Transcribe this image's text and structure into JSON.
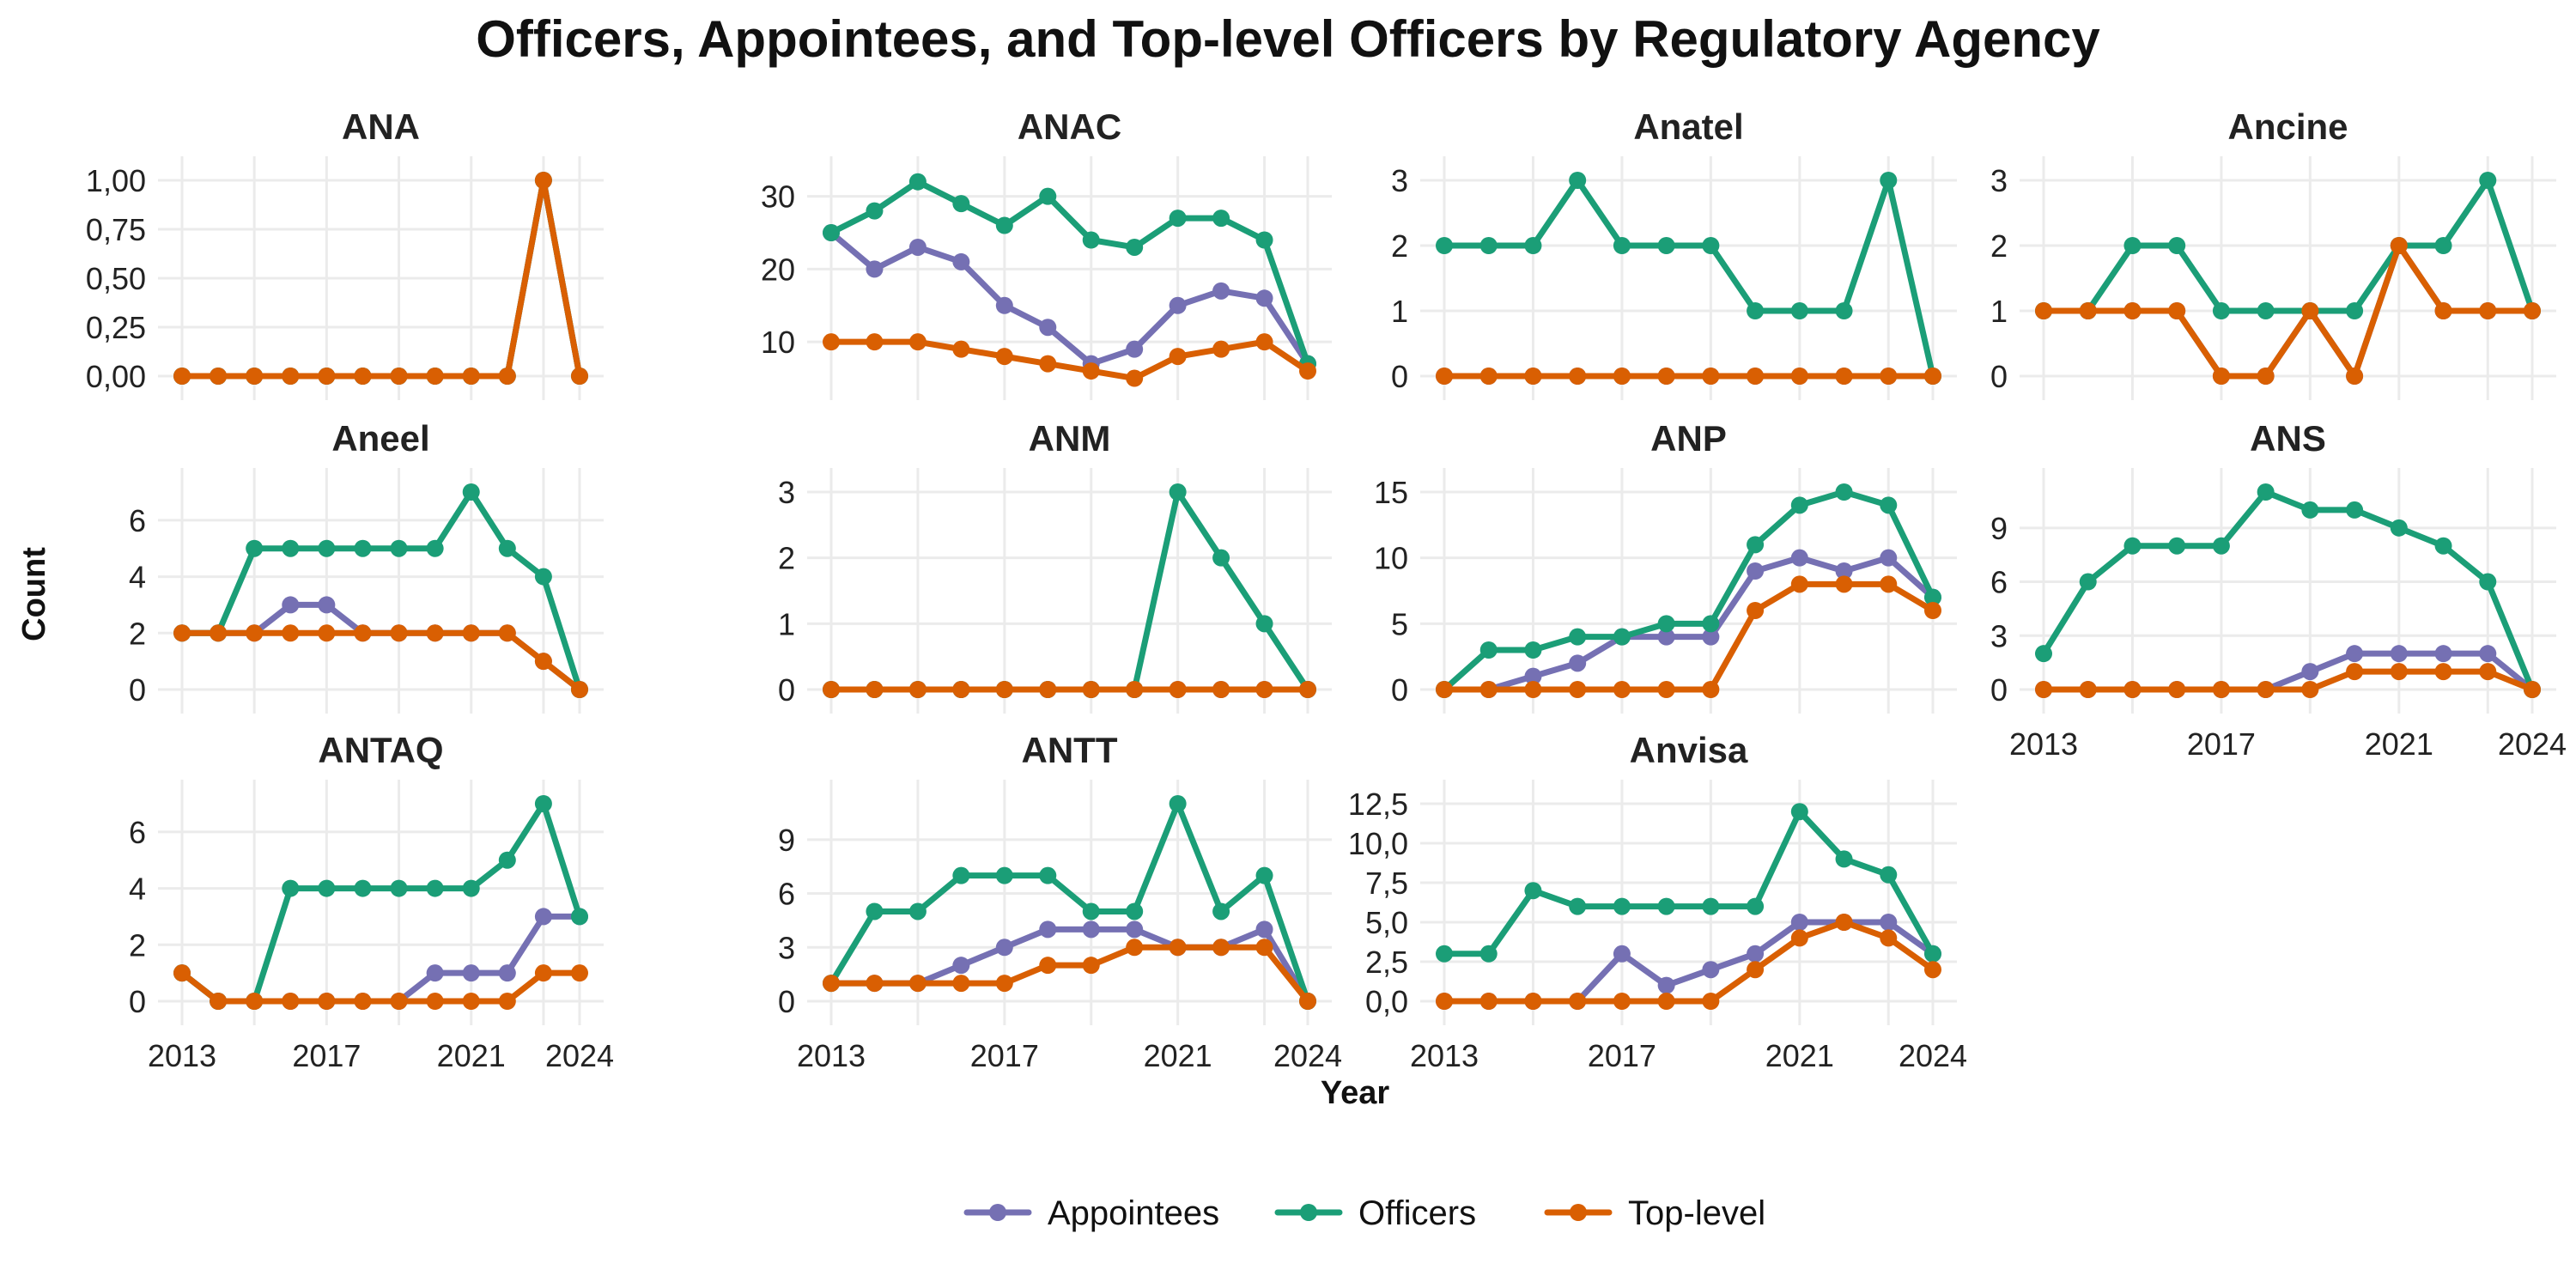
{
  "chart_data": {
    "type": "line",
    "title": "Officers, Appointees, and Top-level Officers by Regulatory Agency",
    "xlabel": "Year",
    "ylabel": "Count",
    "x": [
      2013,
      2014,
      2015,
      2016,
      2017,
      2018,
      2019,
      2020,
      2021,
      2022,
      2023,
      2024
    ],
    "x_ticks": [
      2013,
      2017,
      2021,
      2024
    ],
    "x_tick_labels": [
      "2013",
      "2017",
      "2021",
      "2024"
    ],
    "legend": {
      "position": "bottom",
      "entries": [
        "Appointees",
        "Officers",
        "Top-level"
      ]
    },
    "colors": {
      "Appointees": "#7570b3",
      "Officers": "#1b9e77",
      "Top-level": "#d95f02"
    },
    "grid": true,
    "panels": [
      {
        "name": "ANA",
        "y_ticks": [
          0,
          0.25,
          0.5,
          0.75,
          1
        ],
        "y_tick_labels": [
          "0,00",
          "0,25",
          "0,50",
          "0,75",
          "1,00"
        ],
        "ylim": [
          0,
          1
        ],
        "series": [
          {
            "name": "Appointees",
            "values": [
              0,
              0,
              0,
              0,
              0,
              0,
              0,
              0,
              0,
              0,
              1,
              0
            ]
          },
          {
            "name": "Officers",
            "values": [
              0,
              0,
              0,
              0,
              0,
              0,
              0,
              0,
              0,
              0,
              1,
              0
            ]
          },
          {
            "name": "Top-level",
            "values": [
              0,
              0,
              0,
              0,
              0,
              0,
              0,
              0,
              0,
              0,
              1,
              0
            ]
          }
        ]
      },
      {
        "name": "ANAC",
        "y_ticks": [
          10,
          20,
          30
        ],
        "y_tick_labels": [
          "10",
          "20",
          "30"
        ],
        "ylim": [
          5.3,
          32.2
        ],
        "series": [
          {
            "name": "Appointees",
            "values": [
              25,
              20,
              23,
              21,
              15,
              12,
              7,
              9,
              15,
              17,
              16,
              7
            ]
          },
          {
            "name": "Officers",
            "values": [
              25,
              28,
              32,
              29,
              26,
              30,
              24,
              23,
              27,
              27,
              24,
              7
            ]
          },
          {
            "name": "Top-level",
            "values": [
              10,
              10,
              10,
              9,
              8,
              7,
              6,
              5,
              8,
              9,
              10,
              6
            ]
          }
        ]
      },
      {
        "name": "Anatel",
        "y_ticks": [
          0,
          1,
          2,
          3
        ],
        "y_tick_labels": [
          "0",
          "1",
          "2",
          "3"
        ],
        "ylim": [
          0,
          3
        ],
        "series": [
          {
            "name": "Appointees",
            "values": [
              0,
              0,
              0,
              0,
              0,
              0,
              0,
              0,
              0,
              0,
              0,
              0
            ]
          },
          {
            "name": "Officers",
            "values": [
              2,
              2,
              2,
              3,
              2,
              2,
              2,
              1,
              1,
              1,
              3,
              0
            ]
          },
          {
            "name": "Top-level",
            "values": [
              0,
              0,
              0,
              0,
              0,
              0,
              0,
              0,
              0,
              0,
              0,
              0
            ]
          }
        ]
      },
      {
        "name": "Ancine",
        "y_ticks": [
          0,
          1,
          2,
          3
        ],
        "y_tick_labels": [
          "0",
          "1",
          "2",
          "3"
        ],
        "ylim": [
          0,
          3
        ],
        "series": [
          {
            "name": "Appointees",
            "values": [
              1,
              1,
              1,
              1,
              0,
              0,
              1,
              0,
              2,
              1,
              1,
              1
            ]
          },
          {
            "name": "Officers",
            "values": [
              1,
              1,
              2,
              2,
              1,
              1,
              1,
              1,
              2,
              2,
              3,
              1
            ]
          },
          {
            "name": "Top-level",
            "values": [
              1,
              1,
              1,
              1,
              0,
              0,
              1,
              0,
              2,
              1,
              1,
              1
            ]
          }
        ]
      },
      {
        "name": "Aneel",
        "y_ticks": [
          0,
          2,
          4,
          6
        ],
        "y_tick_labels": [
          "0",
          "2",
          "4",
          "6"
        ],
        "ylim": [
          0,
          7
        ],
        "series": [
          {
            "name": "Appointees",
            "values": [
              2,
              2,
              2,
              3,
              3,
              2,
              2,
              2,
              2,
              2,
              1,
              0
            ]
          },
          {
            "name": "Officers",
            "values": [
              2,
              2,
              5,
              5,
              5,
              5,
              5,
              5,
              7,
              5,
              4,
              0
            ]
          },
          {
            "name": "Top-level",
            "values": [
              2,
              2,
              2,
              2,
              2,
              2,
              2,
              2,
              2,
              2,
              1,
              0
            ]
          }
        ]
      },
      {
        "name": "ANM",
        "y_ticks": [
          0,
          1,
          2,
          3
        ],
        "y_tick_labels": [
          "0",
          "1",
          "2",
          "3"
        ],
        "ylim": [
          0,
          3
        ],
        "series": [
          {
            "name": "Appointees",
            "values": [
              0,
              0,
              0,
              0,
              0,
              0,
              0,
              0,
              0,
              0,
              0,
              0
            ]
          },
          {
            "name": "Officers",
            "values": [
              0,
              0,
              0,
              0,
              0,
              0,
              0,
              0,
              3,
              2,
              1,
              0
            ]
          },
          {
            "name": "Top-level",
            "values": [
              0,
              0,
              0,
              0,
              0,
              0,
              0,
              0,
              0,
              0,
              0,
              0
            ]
          }
        ]
      },
      {
        "name": "ANP",
        "y_ticks": [
          0,
          5,
          10,
          15
        ],
        "y_tick_labels": [
          "0",
          "5",
          "10",
          "15"
        ],
        "ylim": [
          0,
          15
        ],
        "series": [
          {
            "name": "Appointees",
            "values": [
              0,
              0,
              1,
              2,
              4,
              4,
              4,
              9,
              10,
              9,
              10,
              7
            ]
          },
          {
            "name": "Officers",
            "values": [
              0,
              3,
              3,
              4,
              4,
              5,
              5,
              11,
              14,
              15,
              14,
              7
            ]
          },
          {
            "name": "Top-level",
            "values": [
              0,
              0,
              0,
              0,
              0,
              0,
              0,
              6,
              8,
              8,
              8,
              6
            ]
          }
        ]
      },
      {
        "name": "ANS",
        "y_ticks": [
          0,
          3,
          6,
          9
        ],
        "y_tick_labels": [
          "0",
          "3",
          "6",
          "9"
        ],
        "ylim": [
          0,
          11
        ],
        "x_axis_shown": true,
        "series": [
          {
            "name": "Appointees",
            "values": [
              0,
              0,
              0,
              0,
              0,
              0,
              1,
              2,
              2,
              2,
              2,
              0
            ]
          },
          {
            "name": "Officers",
            "values": [
              2,
              6,
              8,
              8,
              8,
              11,
              10,
              10,
              9,
              8,
              6,
              0
            ]
          },
          {
            "name": "Top-level",
            "values": [
              0,
              0,
              0,
              0,
              0,
              0,
              0,
              1,
              1,
              1,
              1,
              0
            ]
          }
        ]
      },
      {
        "name": "ANTAQ",
        "y_ticks": [
          0,
          2,
          4,
          6
        ],
        "y_tick_labels": [
          "0",
          "2",
          "4",
          "6"
        ],
        "ylim": [
          0,
          7
        ],
        "x_axis_shown": true,
        "series": [
          {
            "name": "Appointees",
            "values": [
              1,
              0,
              0,
              0,
              0,
              0,
              0,
              1,
              1,
              1,
              3,
              3
            ]
          },
          {
            "name": "Officers",
            "values": [
              1,
              0,
              0,
              4,
              4,
              4,
              4,
              4,
              4,
              5,
              7,
              3
            ]
          },
          {
            "name": "Top-level",
            "values": [
              1,
              0,
              0,
              0,
              0,
              0,
              0,
              0,
              0,
              0,
              1,
              1
            ]
          }
        ]
      },
      {
        "name": "ANTT",
        "y_ticks": [
          0,
          3,
          6,
          9
        ],
        "y_tick_labels": [
          "0",
          "3",
          "6",
          "9"
        ],
        "ylim": [
          0,
          11
        ],
        "x_axis_shown": true,
        "series": [
          {
            "name": "Appointees",
            "values": [
              1,
              1,
              1,
              2,
              3,
              4,
              4,
              4,
              3,
              3,
              4,
              0
            ]
          },
          {
            "name": "Officers",
            "values": [
              1,
              5,
              5,
              7,
              7,
              7,
              5,
              5,
              11,
              5,
              7,
              0
            ]
          },
          {
            "name": "Top-level",
            "values": [
              1,
              1,
              1,
              1,
              1,
              2,
              2,
              3,
              3,
              3,
              3,
              0
            ]
          }
        ]
      },
      {
        "name": "Anvisa",
        "y_ticks": [
          0,
          2.5,
          5,
          7.5,
          10,
          12.5
        ],
        "y_tick_labels": [
          "0,0",
          "2,5",
          "5,0",
          "7,5",
          "10,0",
          "12,5"
        ],
        "ylim": [
          0,
          12.5
        ],
        "x_axis_shown": true,
        "series": [
          {
            "name": "Appointees",
            "values": [
              0,
              0,
              0,
              0,
              3,
              1,
              2,
              3,
              5,
              5,
              5,
              3
            ]
          },
          {
            "name": "Officers",
            "values": [
              3,
              3,
              7,
              6,
              6,
              6,
              6,
              6,
              12,
              9,
              8,
              3
            ]
          },
          {
            "name": "Top-level",
            "values": [
              0,
              0,
              0,
              0,
              0,
              0,
              0,
              2,
              4,
              5,
              4,
              2
            ]
          }
        ]
      }
    ]
  }
}
